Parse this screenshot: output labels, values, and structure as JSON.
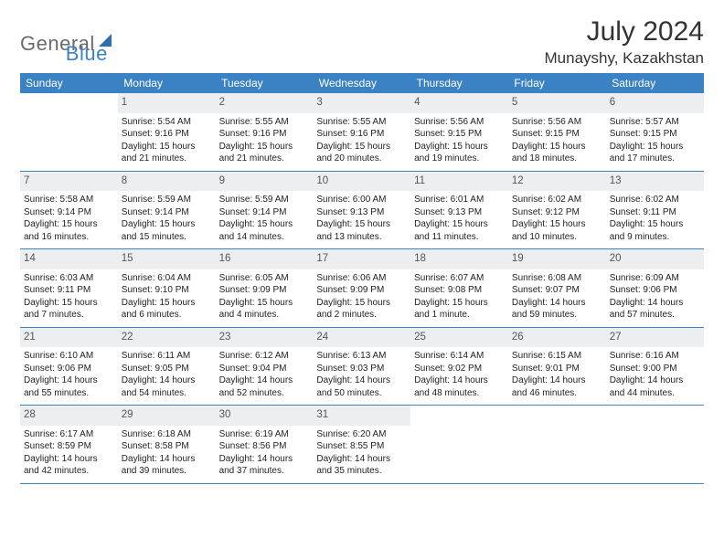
{
  "brand": {
    "part1": "General",
    "part2": "Blue"
  },
  "title": "July 2024",
  "location": "Munayshy, Kazakhstan",
  "colors": {
    "header_bg": "#3b82c4",
    "header_text": "#ffffff",
    "daynum_bg": "#eceeef",
    "row_border": "#3b82c4",
    "logo_gray": "#6b6b6b",
    "logo_blue": "#3b82c4"
  },
  "weekdays": [
    "Sunday",
    "Monday",
    "Tuesday",
    "Wednesday",
    "Thursday",
    "Friday",
    "Saturday"
  ],
  "weeks": [
    [
      {
        "day": "",
        "lines": []
      },
      {
        "day": "1",
        "lines": [
          "Sunrise: 5:54 AM",
          "Sunset: 9:16 PM",
          "Daylight: 15 hours",
          "and 21 minutes."
        ]
      },
      {
        "day": "2",
        "lines": [
          "Sunrise: 5:55 AM",
          "Sunset: 9:16 PM",
          "Daylight: 15 hours",
          "and 21 minutes."
        ]
      },
      {
        "day": "3",
        "lines": [
          "Sunrise: 5:55 AM",
          "Sunset: 9:16 PM",
          "Daylight: 15 hours",
          "and 20 minutes."
        ]
      },
      {
        "day": "4",
        "lines": [
          "Sunrise: 5:56 AM",
          "Sunset: 9:15 PM",
          "Daylight: 15 hours",
          "and 19 minutes."
        ]
      },
      {
        "day": "5",
        "lines": [
          "Sunrise: 5:56 AM",
          "Sunset: 9:15 PM",
          "Daylight: 15 hours",
          "and 18 minutes."
        ]
      },
      {
        "day": "6",
        "lines": [
          "Sunrise: 5:57 AM",
          "Sunset: 9:15 PM",
          "Daylight: 15 hours",
          "and 17 minutes."
        ]
      }
    ],
    [
      {
        "day": "7",
        "lines": [
          "Sunrise: 5:58 AM",
          "Sunset: 9:14 PM",
          "Daylight: 15 hours",
          "and 16 minutes."
        ]
      },
      {
        "day": "8",
        "lines": [
          "Sunrise: 5:59 AM",
          "Sunset: 9:14 PM",
          "Daylight: 15 hours",
          "and 15 minutes."
        ]
      },
      {
        "day": "9",
        "lines": [
          "Sunrise: 5:59 AM",
          "Sunset: 9:14 PM",
          "Daylight: 15 hours",
          "and 14 minutes."
        ]
      },
      {
        "day": "10",
        "lines": [
          "Sunrise: 6:00 AM",
          "Sunset: 9:13 PM",
          "Daylight: 15 hours",
          "and 13 minutes."
        ]
      },
      {
        "day": "11",
        "lines": [
          "Sunrise: 6:01 AM",
          "Sunset: 9:13 PM",
          "Daylight: 15 hours",
          "and 11 minutes."
        ]
      },
      {
        "day": "12",
        "lines": [
          "Sunrise: 6:02 AM",
          "Sunset: 9:12 PM",
          "Daylight: 15 hours",
          "and 10 minutes."
        ]
      },
      {
        "day": "13",
        "lines": [
          "Sunrise: 6:02 AM",
          "Sunset: 9:11 PM",
          "Daylight: 15 hours",
          "and 9 minutes."
        ]
      }
    ],
    [
      {
        "day": "14",
        "lines": [
          "Sunrise: 6:03 AM",
          "Sunset: 9:11 PM",
          "Daylight: 15 hours",
          "and 7 minutes."
        ]
      },
      {
        "day": "15",
        "lines": [
          "Sunrise: 6:04 AM",
          "Sunset: 9:10 PM",
          "Daylight: 15 hours",
          "and 6 minutes."
        ]
      },
      {
        "day": "16",
        "lines": [
          "Sunrise: 6:05 AM",
          "Sunset: 9:09 PM",
          "Daylight: 15 hours",
          "and 4 minutes."
        ]
      },
      {
        "day": "17",
        "lines": [
          "Sunrise: 6:06 AM",
          "Sunset: 9:09 PM",
          "Daylight: 15 hours",
          "and 2 minutes."
        ]
      },
      {
        "day": "18",
        "lines": [
          "Sunrise: 6:07 AM",
          "Sunset: 9:08 PM",
          "Daylight: 15 hours",
          "and 1 minute."
        ]
      },
      {
        "day": "19",
        "lines": [
          "Sunrise: 6:08 AM",
          "Sunset: 9:07 PM",
          "Daylight: 14 hours",
          "and 59 minutes."
        ]
      },
      {
        "day": "20",
        "lines": [
          "Sunrise: 6:09 AM",
          "Sunset: 9:06 PM",
          "Daylight: 14 hours",
          "and 57 minutes."
        ]
      }
    ],
    [
      {
        "day": "21",
        "lines": [
          "Sunrise: 6:10 AM",
          "Sunset: 9:06 PM",
          "Daylight: 14 hours",
          "and 55 minutes."
        ]
      },
      {
        "day": "22",
        "lines": [
          "Sunrise: 6:11 AM",
          "Sunset: 9:05 PM",
          "Daylight: 14 hours",
          "and 54 minutes."
        ]
      },
      {
        "day": "23",
        "lines": [
          "Sunrise: 6:12 AM",
          "Sunset: 9:04 PM",
          "Daylight: 14 hours",
          "and 52 minutes."
        ]
      },
      {
        "day": "24",
        "lines": [
          "Sunrise: 6:13 AM",
          "Sunset: 9:03 PM",
          "Daylight: 14 hours",
          "and 50 minutes."
        ]
      },
      {
        "day": "25",
        "lines": [
          "Sunrise: 6:14 AM",
          "Sunset: 9:02 PM",
          "Daylight: 14 hours",
          "and 48 minutes."
        ]
      },
      {
        "day": "26",
        "lines": [
          "Sunrise: 6:15 AM",
          "Sunset: 9:01 PM",
          "Daylight: 14 hours",
          "and 46 minutes."
        ]
      },
      {
        "day": "27",
        "lines": [
          "Sunrise: 6:16 AM",
          "Sunset: 9:00 PM",
          "Daylight: 14 hours",
          "and 44 minutes."
        ]
      }
    ],
    [
      {
        "day": "28",
        "lines": [
          "Sunrise: 6:17 AM",
          "Sunset: 8:59 PM",
          "Daylight: 14 hours",
          "and 42 minutes."
        ]
      },
      {
        "day": "29",
        "lines": [
          "Sunrise: 6:18 AM",
          "Sunset: 8:58 PM",
          "Daylight: 14 hours",
          "and 39 minutes."
        ]
      },
      {
        "day": "30",
        "lines": [
          "Sunrise: 6:19 AM",
          "Sunset: 8:56 PM",
          "Daylight: 14 hours",
          "and 37 minutes."
        ]
      },
      {
        "day": "31",
        "lines": [
          "Sunrise: 6:20 AM",
          "Sunset: 8:55 PM",
          "Daylight: 14 hours",
          "and 35 minutes."
        ]
      },
      {
        "day": "",
        "lines": []
      },
      {
        "day": "",
        "lines": []
      },
      {
        "day": "",
        "lines": []
      }
    ]
  ]
}
